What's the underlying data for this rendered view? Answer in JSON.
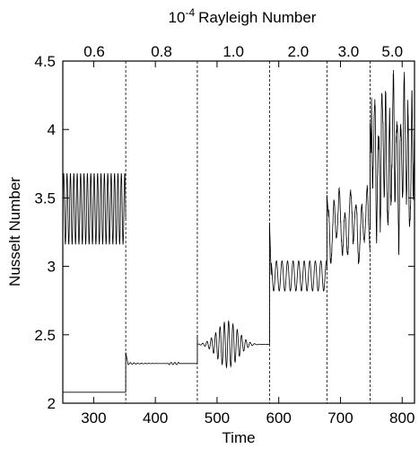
{
  "chart_data": {
    "type": "line",
    "xlabel": "Time",
    "ylabel": "Nusselt Number",
    "top_label_prefix": "10",
    "top_label_exponent": "-4",
    "top_label_suffix": "Rayleigh Number",
    "xlim": [
      250,
      820
    ],
    "ylim": [
      2,
      4.5
    ],
    "x_ticks": [
      300,
      400,
      500,
      600,
      700,
      800
    ],
    "x_tick_labels": [
      "300",
      "400",
      "500",
      "600",
      "700",
      "800"
    ],
    "y_ticks": [
      2,
      2.5,
      3,
      3.5,
      4,
      4.5
    ],
    "y_tick_labels": [
      "2",
      "2.5",
      "3",
      "3.5",
      "4",
      "4.5"
    ],
    "segment_boundaries": [
      352,
      468,
      585,
      678,
      748
    ],
    "segments": [
      {
        "rayleigh_label": "0.6",
        "start": 250,
        "end": 352,
        "mean": 3.42,
        "amp": 0.26,
        "period": 5.5,
        "envelope": "steady",
        "lower_flat": 2.08
      },
      {
        "rayleigh_label": "0.8",
        "start": 352,
        "end": 468,
        "mean": 2.29,
        "amp": 0.02,
        "period": 6,
        "envelope": "decay",
        "spike": 2.37
      },
      {
        "rayleigh_label": "1.0",
        "start": 468,
        "end": 585,
        "mean": 2.43,
        "amp": 0.17,
        "period": 7,
        "envelope": "burst"
      },
      {
        "rayleigh_label": "2.0",
        "start": 585,
        "end": 678,
        "mean": 2.93,
        "amp": 0.11,
        "period": 9,
        "envelope": "steady",
        "spike": 3.32
      },
      {
        "rayleigh_label": "3.0",
        "start": 678,
        "end": 748,
        "mean": 3.3,
        "amp": 0.18,
        "period": 9,
        "envelope": "irregular",
        "spike": 3.52
      },
      {
        "rayleigh_label": "5.0",
        "start": 748,
        "end": 820,
        "mean": 3.8,
        "amp": 0.38,
        "period": 6,
        "envelope": "chaotic",
        "spike": 4.35
      }
    ]
  }
}
